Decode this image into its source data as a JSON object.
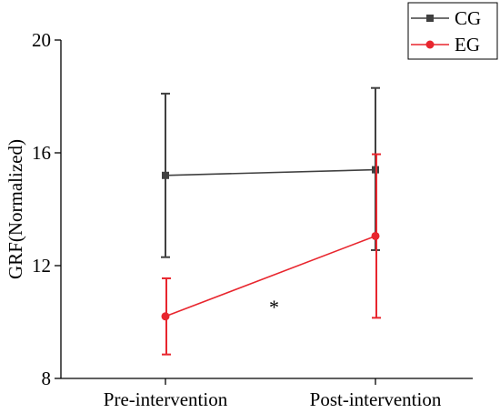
{
  "chart_data": {
    "type": "line",
    "categories": [
      "Pre-intervention",
      "Post-intervention"
    ],
    "ylabel": "GRF(Normalized)",
    "xlabel": "",
    "ylim": [
      8,
      20
    ],
    "yticks": [
      "8",
      "12",
      "16",
      "20"
    ],
    "grid": false,
    "legend_position": "top-right",
    "series": [
      {
        "name": "CG",
        "color": "#404040",
        "marker": "square",
        "values": [
          15.2,
          15.4
        ],
        "error_low": [
          12.3,
          12.55
        ],
        "error_high": [
          18.1,
          18.3
        ]
      },
      {
        "name": "EG",
        "color": "#e8262e",
        "marker": "circle",
        "values": [
          10.2,
          13.05
        ],
        "error_low": [
          8.85,
          10.15
        ],
        "error_high": [
          11.55,
          15.95
        ]
      }
    ],
    "annotations": [
      {
        "text": "*",
        "between": [
          "Pre-intervention",
          "Post-intervention"
        ],
        "y": 10.8
      }
    ]
  }
}
